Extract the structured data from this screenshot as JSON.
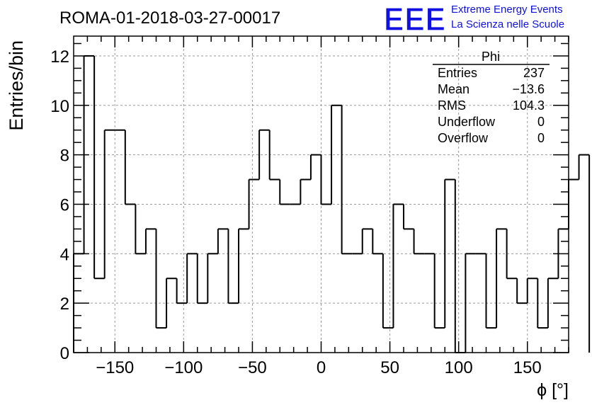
{
  "run_title": "ROMA-01-2018-03-27-00017",
  "logo": {
    "mark": "EEE",
    "line1": "Extreme Energy Events",
    "line2": "La Scienza nelle Scuole",
    "color": "#1010e0"
  },
  "stats_box": {
    "title": "Phi",
    "rows": [
      {
        "label": "Entries",
        "value": "237"
      },
      {
        "label": "Mean",
        "value": "−13.6"
      },
      {
        "label": "RMS",
        "value": "104.3"
      },
      {
        "label": "Underflow",
        "value": "0"
      },
      {
        "label": "Overflow",
        "value": "0"
      }
    ]
  },
  "chart_data": {
    "type": "histogram",
    "title": "ROMA-01-2018-03-27-00017",
    "xlabel": "ϕ [°]",
    "ylabel": "Entries/bin",
    "xlim": [
      -180,
      180
    ],
    "ylim": [
      0,
      12.8
    ],
    "bin_width": 7.5,
    "bin_edges_start": -180,
    "values": [
      4,
      12,
      3,
      9,
      9,
      6,
      4,
      5,
      1,
      3,
      2,
      4,
      2,
      4,
      5,
      2,
      5,
      7,
      9,
      7,
      6,
      6,
      7,
      8,
      6,
      10,
      4,
      4,
      5,
      4,
      1,
      6,
      5,
      4,
      4,
      1,
      7,
      0,
      4,
      4,
      1,
      5,
      3,
      2,
      3,
      1,
      3,
      5,
      7,
      8
    ],
    "x_ticks": [
      -150,
      -100,
      -50,
      0,
      50,
      100,
      150
    ],
    "x_tick_labels": [
      "−150",
      "−100",
      "−50",
      "0",
      "50",
      "100",
      "150"
    ],
    "y_ticks": [
      0,
      2,
      4,
      6,
      8,
      10,
      12
    ],
    "y_tick_labels": [
      "0",
      "2",
      "4",
      "6",
      "8",
      "10",
      "12"
    ],
    "grid": true,
    "line_color": "#000000"
  }
}
